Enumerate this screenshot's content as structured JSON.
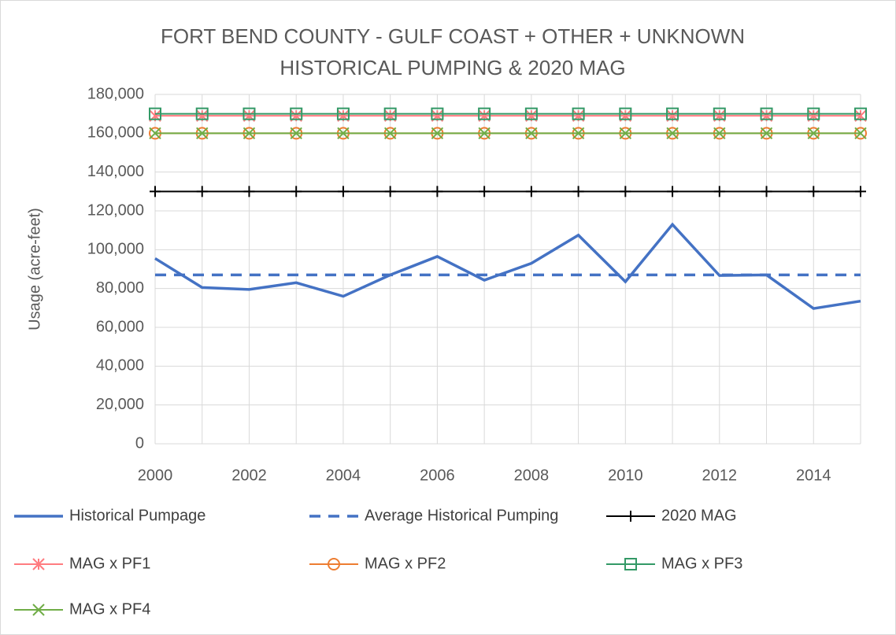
{
  "chart_data": {
    "type": "line",
    "title": [
      "FORT BEND COUNTY - GULF COAST + OTHER + UNKNOWN",
      "HISTORICAL PUMPING & 2020 MAG"
    ],
    "ylabel": "Usage (acre-feet)",
    "x": [
      2000,
      2001,
      2002,
      2003,
      2004,
      2005,
      2006,
      2007,
      2008,
      2009,
      2010,
      2011,
      2012,
      2013,
      2014,
      2015
    ],
    "xlim": [
      2000,
      2015
    ],
    "xticks": [
      2000,
      2002,
      2004,
      2006,
      2008,
      2010,
      2012,
      2014
    ],
    "ylim": [
      0,
      180000
    ],
    "yticks": [
      0,
      {
        "value": 20000,
        "label": "20,000"
      },
      {
        "value": 40000,
        "label": "40,000"
      },
      {
        "value": 60000,
        "label": "60,000"
      },
      {
        "value": 80000,
        "label": "80,000"
      },
      {
        "value": 100000,
        "label": "100,000"
      },
      {
        "value": 120000,
        "label": "120,000"
      },
      {
        "value": 140000,
        "label": "140,000"
      },
      {
        "value": 160000,
        "label": "160,000"
      },
      {
        "value": 180000,
        "label": "180,000"
      }
    ],
    "grid": true,
    "legend": "bottom",
    "series": [
      {
        "name": "Historical Pumpage",
        "color": "#4472c4",
        "marker": "none",
        "dash": false,
        "values": [
          95500,
          80500,
          79500,
          83000,
          76000,
          87000,
          96500,
          84300,
          93000,
          107500,
          83500,
          113000,
          86700,
          87000,
          69700,
          73500
        ]
      },
      {
        "name": "Average Historical Pumping",
        "color": "#4472c4",
        "marker": "none",
        "dash": true,
        "values": [
          87000,
          87000,
          87000,
          87000,
          87000,
          87000,
          87000,
          87000,
          87000,
          87000,
          87000,
          87000,
          87000,
          87000,
          87000,
          87000
        ]
      },
      {
        "name": "2020 MAG",
        "color": "#000000",
        "marker": "plus",
        "dash": false,
        "values": [
          130000,
          130000,
          130000,
          130000,
          130000,
          130000,
          130000,
          130000,
          130000,
          130000,
          130000,
          130000,
          130000,
          130000,
          130000,
          130000
        ]
      },
      {
        "name": "MAG x PF1",
        "color": "#ff7c80",
        "marker": "asterisk",
        "dash": false,
        "values": [
          169000,
          169000,
          169000,
          169000,
          169000,
          169000,
          169000,
          169000,
          169000,
          169000,
          169000,
          169000,
          169000,
          169000,
          169000,
          169000
        ]
      },
      {
        "name": "MAG x PF2",
        "color": "#ed7d31",
        "marker": "circle",
        "dash": false,
        "values": [
          160000,
          160000,
          160000,
          160000,
          160000,
          160000,
          160000,
          160000,
          160000,
          160000,
          160000,
          160000,
          160000,
          160000,
          160000,
          160000
        ]
      },
      {
        "name": "MAG x PF3",
        "color": "#339966",
        "marker": "square",
        "dash": false,
        "values": [
          170000,
          170000,
          170000,
          170000,
          170000,
          170000,
          170000,
          170000,
          170000,
          170000,
          170000,
          170000,
          170000,
          170000,
          170000,
          170000
        ]
      },
      {
        "name": "MAG x PF4",
        "color": "#70ad47",
        "marker": "x",
        "dash": false,
        "values": [
          160000,
          160000,
          160000,
          160000,
          160000,
          160000,
          160000,
          160000,
          160000,
          160000,
          160000,
          160000,
          160000,
          160000,
          160000,
          160000
        ]
      }
    ]
  }
}
